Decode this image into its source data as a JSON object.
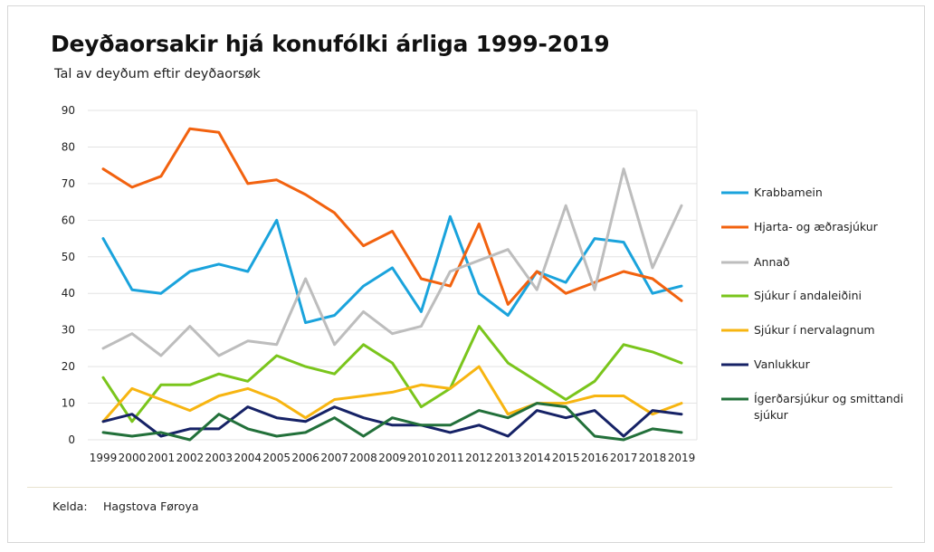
{
  "source": {
    "label": "Kelda:",
    "value": "Hagstova Føroya"
  },
  "chart_data": {
    "type": "line",
    "title": "Deyðaorsakir hjá konufólki árliga 1999-2019",
    "subtitle": "Tal av deyðum eftir deyðaorsøk",
    "xlabel": "",
    "ylabel": "",
    "ylim": [
      0,
      90
    ],
    "yticks": [
      0,
      10,
      20,
      30,
      40,
      50,
      60,
      70,
      80,
      90
    ],
    "grid": true,
    "legend_position": "right",
    "categories": [
      "1999",
      "2000",
      "2001",
      "2002",
      "2003",
      "2004",
      "2005",
      "2006",
      "2007",
      "2008",
      "2009",
      "2010",
      "2011",
      "2012",
      "2013",
      "2014",
      "2015",
      "2016",
      "2017",
      "2018",
      "2019"
    ],
    "series": [
      {
        "name": "Krabbamein",
        "color": "#1aa3dc",
        "values": [
          55,
          41,
          40,
          46,
          48,
          46,
          60,
          32,
          34,
          42,
          47,
          35,
          61,
          40,
          34,
          46,
          43,
          55,
          54,
          40,
          42
        ]
      },
      {
        "name": "Hjarta- og æðrasjúkur",
        "color": "#f2620f",
        "values": [
          74,
          69,
          72,
          85,
          84,
          70,
          71,
          67,
          62,
          53,
          57,
          44,
          42,
          59,
          37,
          46,
          40,
          43,
          46,
          44,
          38
        ]
      },
      {
        "name": "Annað",
        "color": "#bdbdbd",
        "values": [
          25,
          29,
          23,
          31,
          23,
          27,
          26,
          44,
          26,
          35,
          29,
          31,
          46,
          49,
          52,
          41,
          64,
          41,
          74,
          47,
          64
        ]
      },
      {
        "name": "Sjúkur í andaleiðini",
        "color": "#7ac51c",
        "values": [
          17,
          5,
          15,
          15,
          18,
          16,
          23,
          20,
          18,
          26,
          21,
          9,
          14,
          31,
          21,
          16,
          11,
          16,
          26,
          24,
          21
        ]
      },
      {
        "name": "Sjúkur í nervalagnum",
        "color": "#f7b511",
        "values": [
          5,
          14,
          11,
          8,
          12,
          14,
          11,
          6,
          11,
          12,
          13,
          15,
          14,
          20,
          7,
          10,
          10,
          12,
          12,
          7,
          10
        ]
      },
      {
        "name": "Vanlukkur",
        "color": "#162266",
        "values": [
          5,
          7,
          1,
          3,
          3,
          9,
          6,
          5,
          9,
          6,
          4,
          4,
          2,
          4,
          1,
          8,
          6,
          8,
          1,
          8,
          7
        ]
      },
      {
        "name": "Ígerðarsjúkur og smittandi sjúkur",
        "color": "#22703a",
        "values": [
          2,
          1,
          2,
          0,
          7,
          3,
          1,
          2,
          6,
          1,
          6,
          4,
          4,
          8,
          6,
          10,
          9,
          1,
          0,
          3,
          2
        ]
      }
    ]
  }
}
